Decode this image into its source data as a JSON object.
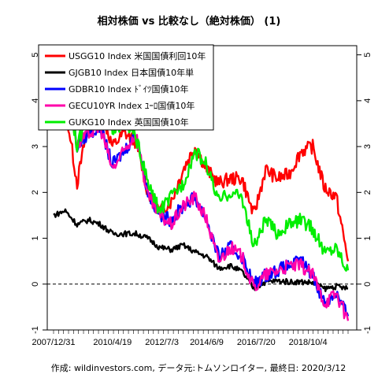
{
  "chart_data": {
    "type": "line",
    "title": "相対株価 vs 比較なし（絶対株価） (1)",
    "caption": "作成: wildinvestors.com, データ元:トムソンロイター, 最終日: 2020/3/12",
    "xlabel": "",
    "ylabel": "",
    "x_tick_labels": [
      "2007/12/31",
      "2010/4/19",
      "2012/7/3",
      "2014/6/9",
      "2016/7/20",
      "2018/10/4"
    ],
    "x": [
      "2007/12",
      "2008/6",
      "2008/12",
      "2009/6",
      "2009/12",
      "2010/6",
      "2010/12",
      "2011/6",
      "2011/12",
      "2012/6",
      "2012/12",
      "2013/6",
      "2013/12",
      "2014/6",
      "2014/12",
      "2015/6",
      "2015/12",
      "2016/6",
      "2016/12",
      "2017/6",
      "2017/12",
      "2018/6",
      "2018/12",
      "2019/6",
      "2019/12",
      "2020/3"
    ],
    "ylim": [
      -1,
      5.2
    ],
    "y_ticks": [
      -1,
      0,
      1,
      2,
      3,
      4,
      5
    ],
    "zero_line": 0,
    "grid": false,
    "legend_position": "top-left",
    "series": [
      {
        "name": "USGG10 Index 米国国債利回10年",
        "color": "#ff0000",
        "values": [
          4.0,
          3.9,
          2.2,
          3.6,
          3.8,
          3.0,
          3.3,
          3.1,
          2.0,
          1.6,
          1.8,
          2.5,
          3.0,
          2.5,
          2.2,
          2.3,
          2.3,
          1.5,
          2.5,
          2.3,
          2.4,
          2.9,
          3.0,
          2.1,
          1.9,
          0.5
        ]
      },
      {
        "name": "GJGB10 Index 日本国債10年単",
        "color": "#000000",
        "values": [
          1.5,
          1.6,
          1.3,
          1.4,
          1.3,
          1.1,
          1.1,
          1.1,
          1.0,
          0.8,
          0.75,
          0.85,
          0.7,
          0.6,
          0.35,
          0.4,
          0.27,
          -0.1,
          0.05,
          0.07,
          0.05,
          0.05,
          0.03,
          -0.1,
          -0.05,
          -0.1
        ]
      },
      {
        "name": "GDBR10 Index ﾄﾞｲﾂ国債10年",
        "color": "#0000ff",
        "values": [
          4.3,
          4.4,
          3.0,
          3.3,
          3.4,
          2.6,
          2.9,
          3.3,
          2.0,
          1.5,
          1.4,
          1.7,
          1.9,
          1.4,
          0.6,
          0.8,
          0.6,
          0.0,
          0.2,
          0.3,
          0.4,
          0.5,
          0.2,
          -0.4,
          -0.2,
          -0.7
        ]
      },
      {
        "name": "GECU10YR Index ﾕｰﾛ国債10年",
        "color": "#ff00aa",
        "values": [
          4.3,
          4.4,
          3.0,
          3.3,
          3.4,
          2.5,
          2.9,
          3.3,
          1.9,
          1.5,
          1.3,
          1.7,
          1.9,
          1.4,
          0.5,
          0.8,
          0.6,
          -0.1,
          0.2,
          0.3,
          0.4,
          0.4,
          0.2,
          -0.4,
          -0.2,
          -0.8
        ]
      },
      {
        "name": "GUKG10 Index 英国国債10年",
        "color": "#00ee00",
        "values": [
          4.6,
          4.6,
          3.0,
          3.8,
          4.0,
          3.4,
          3.5,
          3.2,
          2.2,
          1.6,
          1.9,
          2.2,
          2.9,
          2.6,
          1.8,
          2.0,
          1.9,
          0.8,
          1.4,
          1.1,
          1.3,
          1.4,
          1.2,
          0.7,
          0.8,
          0.3
        ]
      }
    ]
  }
}
